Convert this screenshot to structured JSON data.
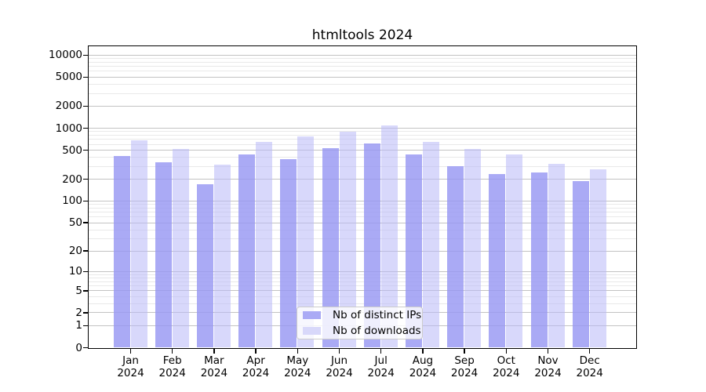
{
  "chart_data": {
    "type": "bar",
    "title": "htmltools 2024",
    "categories": [
      "Jan 2024",
      "Feb 2024",
      "Mar 2024",
      "Apr 2024",
      "May 2024",
      "Jun 2024",
      "Jul 2024",
      "Aug 2024",
      "Sep 2024",
      "Oct 2024",
      "Nov 2024",
      "Dec 2024"
    ],
    "series": [
      {
        "name": "Nb of distinct IPs",
        "values": [
          415,
          338,
          167,
          428,
          377,
          533,
          604,
          428,
          299,
          234,
          245,
          185
        ]
      },
      {
        "name": "Nb of downloads",
        "values": [
          667,
          514,
          311,
          642,
          755,
          875,
          1090,
          638,
          510,
          437,
          324,
          269
        ]
      }
    ],
    "y_ticks": [
      0,
      1,
      2,
      5,
      10,
      20,
      50,
      100,
      200,
      500,
      1000,
      2000,
      5000,
      10000
    ],
    "yscale": "log1p",
    "ylim": [
      0,
      13000
    ],
    "xlabel": "",
    "ylabel": "",
    "grid": true,
    "legend_position": "lower center"
  },
  "colors": {
    "distinct_ips_bar": "rgba(151,151,243,0.82)",
    "downloads_bar": "rgba(184,184,247,0.55)",
    "distinct_ips_legend": "#aaaaf5",
    "downloads_legend": "#d8d8fa",
    "grid_major": "#c3c3c3",
    "grid_minor": "#e9e9e9",
    "axis": "#000000"
  }
}
